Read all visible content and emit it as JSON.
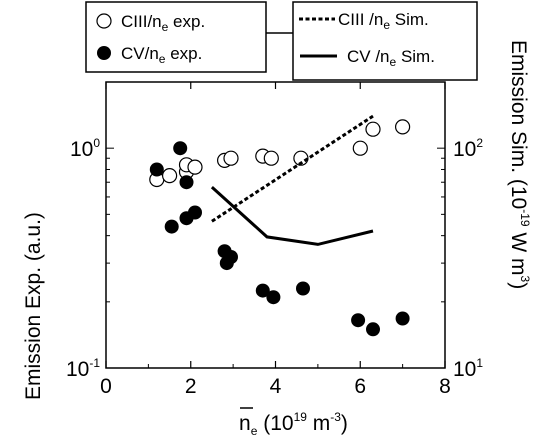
{
  "chart_data": {
    "type": "scatter",
    "x_axis": {
      "label_prefix": "n",
      "label_sub": "e",
      "label_mid": " (10",
      "label_exp": "19",
      "label_unit": " m",
      "label_unit_exp": "-3",
      "label_end": ")",
      "range": [
        0,
        8
      ],
      "ticks": [
        0,
        2,
        4,
        6,
        8
      ],
      "tick_labels": [
        "0",
        "2",
        "4",
        "6",
        "8"
      ]
    },
    "y_left": {
      "label": "Emission Exp. (a.u.)",
      "scale": "log",
      "range": [
        0.1,
        2.0
      ],
      "ticks": [
        {
          "value": 1.0,
          "base": "10",
          "exp": "0"
        },
        {
          "value": 0.1,
          "base": "10",
          "exp": "-1"
        }
      ]
    },
    "y_right": {
      "label_main": "Emission Sim. (10",
      "label_exp": "-19",
      "label_unit": " W m",
      "label_unit_exp": "3",
      "label_end": ")",
      "scale": "log",
      "range": [
        10,
        200
      ],
      "ticks": [
        {
          "value": 100,
          "base": "10",
          "exp": "2"
        },
        {
          "value": 10,
          "base": "10",
          "exp": "1"
        }
      ]
    },
    "legend": {
      "left": [
        {
          "main": "CIII/n",
          "sub": "e",
          "tail": " exp.",
          "marker": "open-circle"
        },
        {
          "main": "CV/n",
          "sub": "e",
          "tail": " exp.",
          "marker": "filled-circle"
        }
      ],
      "right": [
        {
          "main": "CIII /n",
          "sub": "e",
          "tail": " Sim.",
          "marker": "dashed-line"
        },
        {
          "main": "CV /n",
          "sub": "e",
          "tail": " Sim.",
          "marker": "solid-line"
        }
      ]
    },
    "series": [
      {
        "name": "CIII/ne exp.",
        "kind": "scatter",
        "marker": "open",
        "axis": "left",
        "points": [
          [
            1.2,
            0.72
          ],
          [
            1.5,
            0.75
          ],
          [
            1.9,
            0.78
          ],
          [
            1.9,
            0.84
          ],
          [
            2.1,
            0.82
          ],
          [
            2.8,
            0.88
          ],
          [
            2.95,
            0.9
          ],
          [
            3.7,
            0.92
          ],
          [
            3.9,
            0.9
          ],
          [
            4.6,
            0.9
          ],
          [
            6.0,
            1.0
          ],
          [
            6.3,
            1.22
          ],
          [
            7.0,
            1.25
          ]
        ]
      },
      {
        "name": "CV/ne exp.",
        "kind": "scatter",
        "marker": "filled",
        "axis": "left",
        "points": [
          [
            1.2,
            0.8
          ],
          [
            1.55,
            0.44
          ],
          [
            1.75,
            1.0
          ],
          [
            1.9,
            0.7
          ],
          [
            1.9,
            0.48
          ],
          [
            2.1,
            0.51
          ],
          [
            2.8,
            0.34
          ],
          [
            2.95,
            0.32
          ],
          [
            2.85,
            0.3
          ],
          [
            3.7,
            0.225
          ],
          [
            3.95,
            0.21
          ],
          [
            4.65,
            0.23
          ],
          [
            5.95,
            0.165
          ],
          [
            6.3,
            0.15
          ],
          [
            7.0,
            0.168
          ]
        ]
      },
      {
        "name": "CIII/ne Sim.",
        "kind": "line",
        "style": "dashed",
        "axis": "right",
        "points": [
          [
            2.5,
            46.5
          ],
          [
            6.3,
            140
          ]
        ]
      },
      {
        "name": "CV/ne Sim.",
        "kind": "line",
        "style": "solid",
        "axis": "right",
        "points": [
          [
            2.5,
            66.5
          ],
          [
            3.8,
            39.5
          ],
          [
            5.0,
            36.5
          ],
          [
            6.3,
            42
          ]
        ]
      }
    ]
  }
}
